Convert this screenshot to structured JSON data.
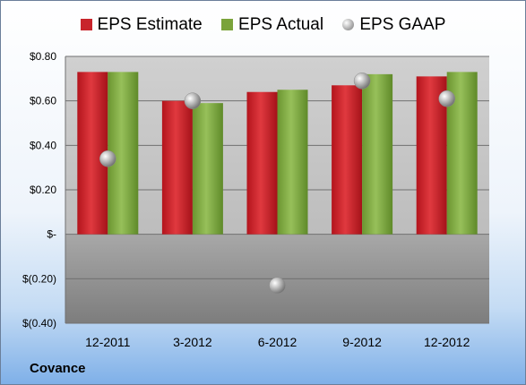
{
  "company": "Covance",
  "colors": {
    "estimate": "#c8242b",
    "actual": "#7aa33a",
    "gaap": "#a6a6a6"
  },
  "chart_data": {
    "type": "bar",
    "categories": [
      "12-2011",
      "3-2012",
      "6-2012",
      "9-2012",
      "12-2012"
    ],
    "series": [
      {
        "name": "EPS Estimate",
        "type": "bar",
        "values": [
          0.73,
          0.6,
          0.64,
          0.67,
          0.71
        ]
      },
      {
        "name": "EPS Actual",
        "type": "bar",
        "values": [
          0.73,
          0.59,
          0.65,
          0.72,
          0.73
        ]
      },
      {
        "name": "EPS GAAP",
        "type": "scatter",
        "values": [
          0.34,
          0.6,
          -0.23,
          0.69,
          0.61
        ]
      }
    ],
    "ylim": [
      -0.4,
      0.8
    ],
    "yticks": [
      0.8,
      0.6,
      0.4,
      0.2,
      0,
      -0.2,
      -0.4
    ],
    "ytick_labels": [
      "$0.80",
      "$0.60",
      "$0.40",
      "$0.20",
      "$-",
      "$(0.20)",
      "$(0.40)"
    ],
    "grid": true,
    "legend": "top"
  }
}
